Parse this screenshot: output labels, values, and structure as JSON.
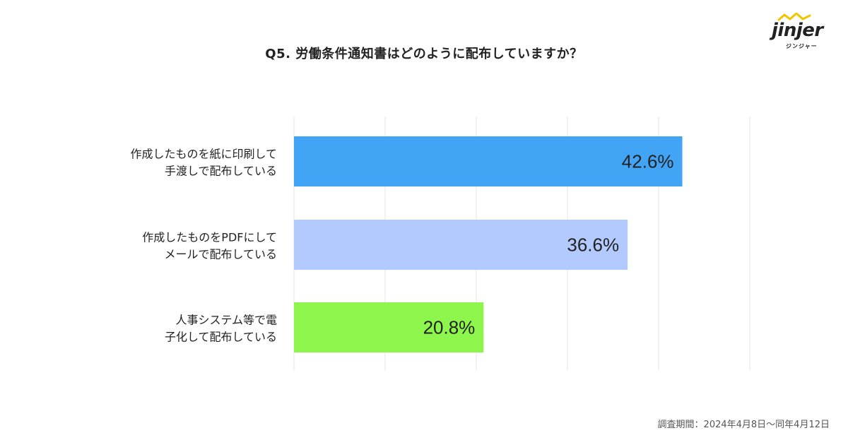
{
  "header": {
    "title": "Q5. 労働条件通知書はどのように配布していますか？"
  },
  "brand": {
    "logo_text": "jinjer",
    "logo_kana": "ジンジャー",
    "accent": "#f2c500"
  },
  "chart_data": {
    "type": "bar",
    "orientation": "horizontal",
    "categories": [
      [
        "作成したものを紙に印刷して",
        "手渡しで配布している"
      ],
      [
        "作成したものをPDFにして",
        "メールで配布している"
      ],
      [
        "人事システム等で電",
        "子化して配布している"
      ]
    ],
    "values": [
      42.6,
      36.6,
      20.8
    ],
    "value_labels": [
      "42.6%",
      "36.6%",
      "20.8%"
    ],
    "colors": [
      "#42a4f5",
      "#b3caff",
      "#8ef54d"
    ],
    "xlim": [
      0,
      50
    ],
    "grid": true,
    "gridline_color": "#e6e6e6"
  },
  "footer": {
    "note": "調査期間：2024年4月8日〜同年4月12日"
  }
}
